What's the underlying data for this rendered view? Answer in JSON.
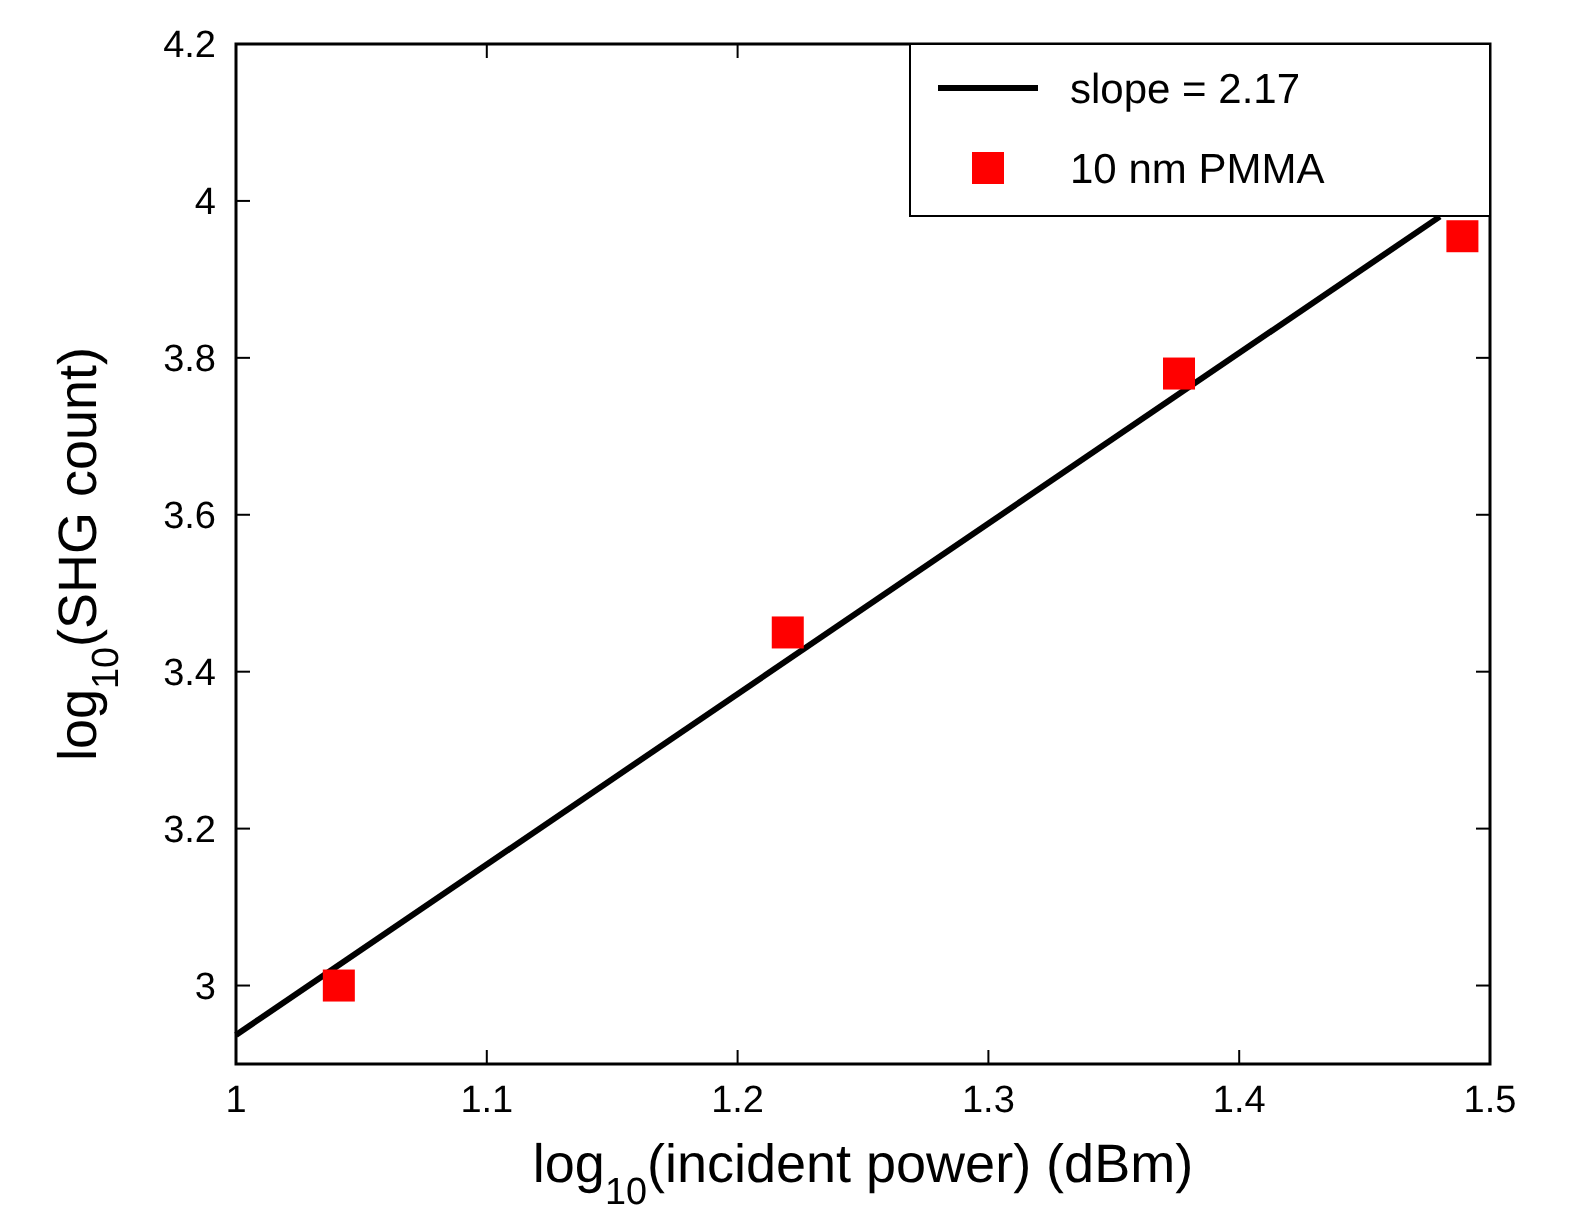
{
  "chart_data": {
    "type": "scatter",
    "xlabel": "log$_{10}$(incident power) (dBm)",
    "ylabel": "log$_{10}$(SHG count)",
    "xlim": [
      1,
      1.5
    ],
    "xticks": [
      1,
      1.1,
      1.2,
      1.3,
      1.4,
      1.5
    ],
    "ylim": [
      2.9,
      4.2
    ],
    "yticks": [
      3,
      3.2,
      3.4,
      3.6,
      3.8,
      4,
      4.2
    ],
    "grid": false,
    "legend": "top right",
    "marker": "square",
    "series": [
      {
        "name": "slope = 2.17",
        "type": "line",
        "color": "#000000",
        "x": [
          1,
          1.48
        ],
        "values": [
          2.937,
          3.98
        ],
        "marker": "none",
        "line_style": "solid"
      },
      {
        "name": "10 nm PMMA",
        "color": "#ff0000",
        "x": [
          1.041,
          1.22,
          1.376,
          1.489
        ],
        "values": [
          3.0,
          3.45,
          3.78,
          3.955
        ]
      }
    ]
  }
}
